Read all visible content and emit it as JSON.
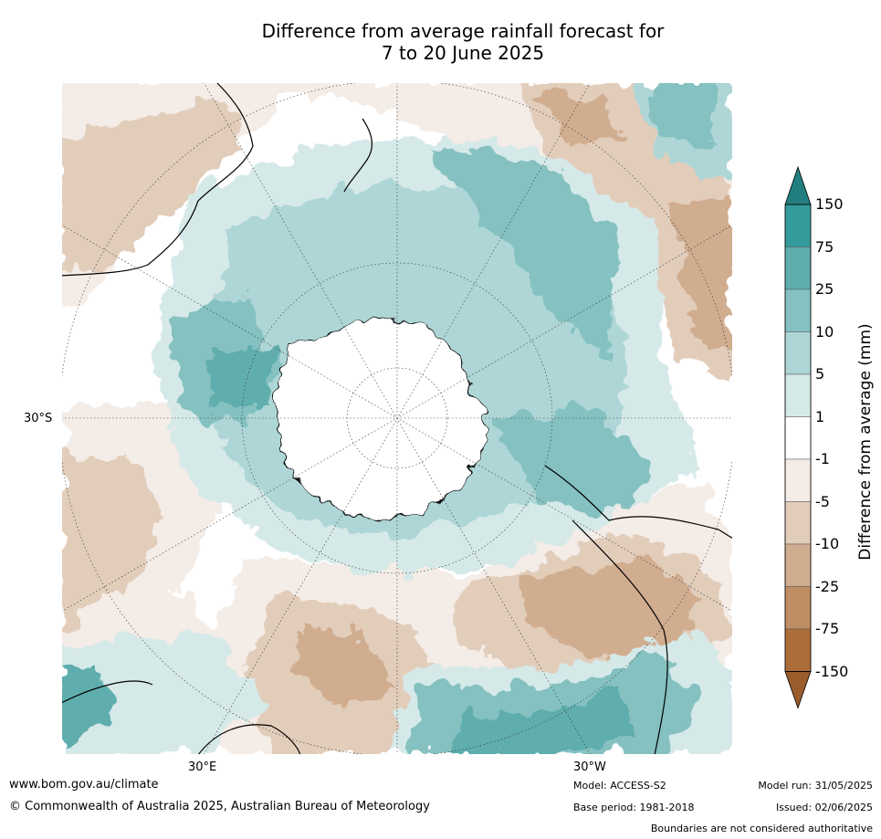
{
  "title": {
    "line1": "Difference from average rainfall forecast for",
    "line2": "7 to 20 June 2025"
  },
  "map": {
    "lat_label": "30°S",
    "lon_label_left": "30°E",
    "lon_label_right": "30°W",
    "projection": "south-polar stereographic",
    "graticule": "dotted"
  },
  "colorbar": {
    "label": "Difference from average (mm)",
    "ticks": [
      "150",
      "75",
      "25",
      "10",
      "5",
      "1",
      "-1",
      "-5",
      "-10",
      "-25",
      "-75",
      "-150"
    ],
    "colors_top_to_bottom": [
      "#237f7f",
      "#339b9b",
      "#5eadad",
      "#85c1c1",
      "#afd6d6",
      "#d6e9e9",
      "#ffffff",
      "#f4ece6",
      "#e2cdbb",
      "#d1ad90",
      "#bf8d63",
      "#ad6d38",
      "#9b5c2b"
    ]
  },
  "footer": {
    "url": "www.bom.gov.au/climate",
    "copyright": "© Commonwealth of Australia 2025, Australian Bureau of Meteorology",
    "model": "Model: ACCESS-S2",
    "base_period": "Base period: 1981-2018",
    "model_run": "Model run: 31/05/2025",
    "issued": "Issued: 02/06/2025",
    "disclaimer": "Boundaries are not considered authoritative"
  }
}
